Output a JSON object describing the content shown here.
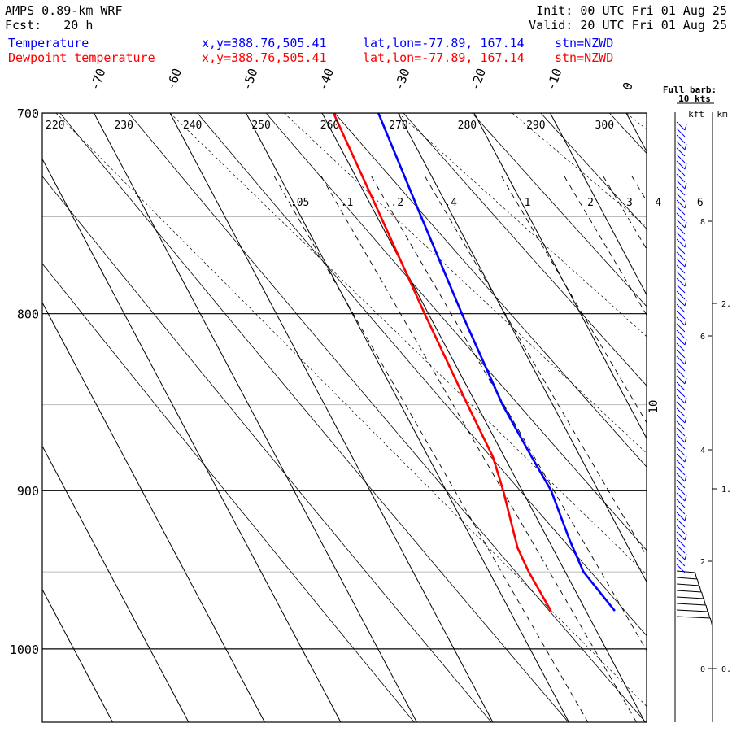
{
  "header": {
    "model": "AMPS 0.89-km WRF",
    "fcst": "Fcst:   20 h",
    "init": "Init: 00 UTC Fri 01 Aug 25",
    "valid": "Valid: 20 UTC Fri 01 Aug 25",
    "lines": [
      {
        "label": "Temperature",
        "xy": "x,y=388.76,505.41",
        "latlon": "lat,lon=-77.89, 167.14",
        "stn": "stn=NZWD"
      },
      {
        "label": "Dewpoint temperature",
        "xy": "x,y=388.76,505.41",
        "latlon": "lat,lon=-77.89, 167.14",
        "stn": "stn=NZWD"
      }
    ]
  },
  "colors": {
    "temperature": "#0000ff",
    "dewpoint": "#ff0000",
    "grid": "#000000",
    "minor_grid": "#bbbbbb"
  },
  "chart_data": {
    "type": "line",
    "y_scale": "log-pressure",
    "ylim": [
      700,
      1050
    ],
    "pressure_labels": [
      "700",
      "800",
      "900",
      "1000"
    ],
    "temperature_ticks": [
      "-70",
      "-60",
      "-50",
      "-40",
      "-30",
      "-20",
      "-10",
      "0"
    ],
    "theta_labels": [
      "220",
      "230",
      "240",
      "250",
      "260",
      "270",
      "280",
      "290",
      "300"
    ],
    "mixing_ratio_labels": [
      ".05",
      ".1",
      ".2",
      ".4",
      "1",
      "2",
      "3",
      "4",
      "6"
    ],
    "moist_adiabat_label": "10",
    "series": [
      {
        "name": "Temperature",
        "points": [
          [
            700,
            -32.6
          ],
          [
            750,
            -34.2
          ],
          [
            800,
            -35.6
          ],
          [
            850,
            -36.6
          ],
          [
            880,
            -36.4
          ],
          [
            900,
            -36.2
          ],
          [
            930,
            -37.2
          ],
          [
            950,
            -37.6
          ],
          [
            975,
            -36.2
          ]
        ]
      },
      {
        "name": "Dewpoint temperature",
        "points": [
          [
            700,
            -38.5
          ],
          [
            750,
            -39.5
          ],
          [
            800,
            -40.5
          ],
          [
            850,
            -41.2
          ],
          [
            880,
            -41.5
          ],
          [
            900,
            -42.5
          ],
          [
            935,
            -44.6
          ],
          [
            950,
            -44.8
          ],
          [
            975,
            -44.6
          ]
        ]
      }
    ],
    "wind": {
      "label": "Full barb: 10 kts",
      "axis_units": [
        "kft",
        "km"
      ],
      "kft_labels": [
        "8",
        "6",
        "4",
        "2",
        "0"
      ],
      "km_labels": [
        "2.",
        "1.",
        "0."
      ]
    }
  }
}
